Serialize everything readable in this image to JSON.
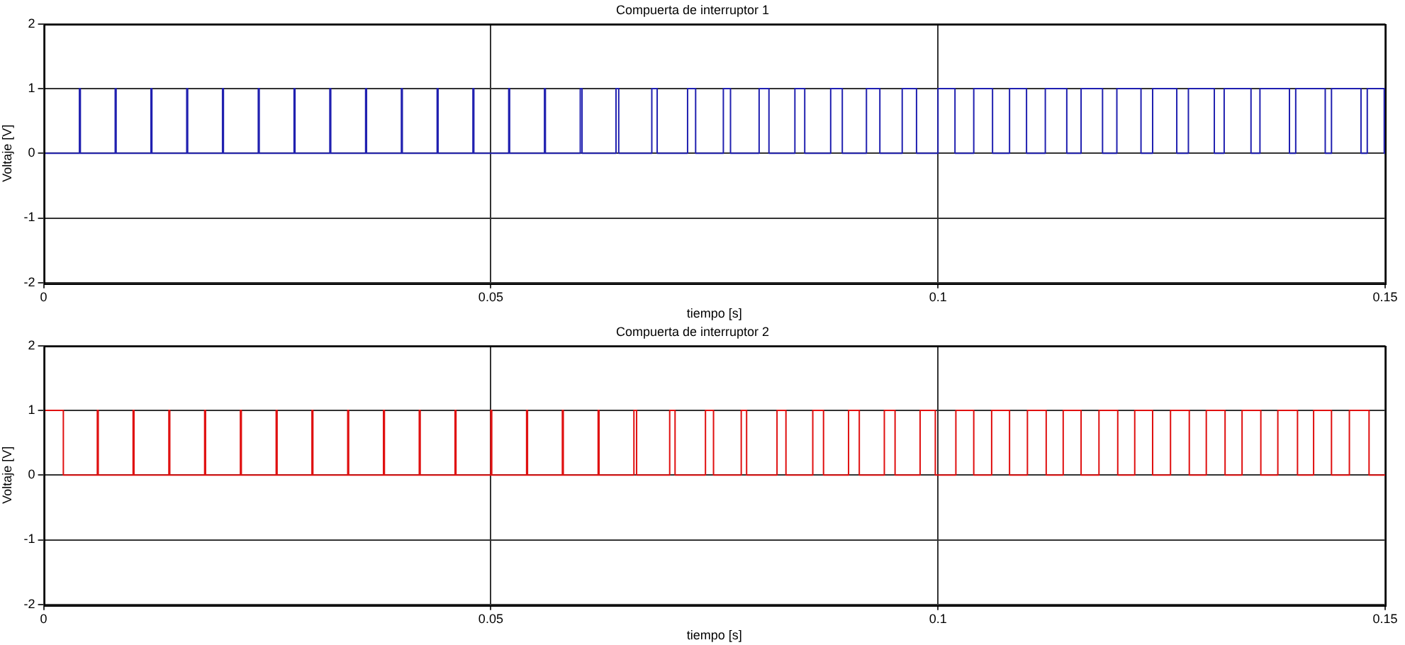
{
  "chart_data": [
    {
      "type": "step",
      "title": "Compuerta de interruptor 1",
      "xlabel": "tiempo [s]",
      "ylabel": "Voltaje [V]",
      "xlim": [
        0,
        0.15
      ],
      "xticks": [
        0,
        0.05,
        0.1,
        0.15
      ],
      "ylim": [
        -2,
        2
      ],
      "yticks": [
        -2,
        -1,
        0,
        1,
        2
      ],
      "grid": true,
      "x": [
        0,
        0.004,
        0.0041,
        0.008,
        0.0081,
        0.012,
        0.0121,
        0.016,
        0.0161,
        0.02,
        0.0201,
        0.024,
        0.0241,
        0.028,
        0.0281,
        0.032,
        0.0321,
        0.036,
        0.0361,
        0.04,
        0.0401,
        0.044,
        0.0441,
        0.048,
        0.0481,
        0.052,
        0.0521,
        0.056,
        0.0561,
        0.06,
        0.0602,
        0.064,
        0.0643,
        0.068,
        0.0686,
        0.072,
        0.0729,
        0.076,
        0.0768,
        0.08,
        0.0811,
        0.084,
        0.0851,
        0.088,
        0.0893,
        0.092,
        0.0935,
        0.096,
        0.0976,
        0.1,
        0.1019,
        0.104,
        0.1061,
        0.108,
        0.1099,
        0.112,
        0.1144,
        0.116,
        0.1184,
        0.12,
        0.1227,
        0.124,
        0.1267,
        0.128,
        0.1309,
        0.132,
        0.135,
        0.136,
        0.1393,
        0.14,
        0.1433,
        0.144,
        0.1473,
        0.148,
        0.1499,
        0.15
      ],
      "series": [
        {
          "color": "#2020b0",
          "values": [
            0,
            1,
            0,
            1,
            0,
            1,
            0,
            1,
            0,
            1,
            0,
            1,
            0,
            1,
            0,
            1,
            0,
            1,
            0,
            1,
            0,
            1,
            0,
            1,
            0,
            1,
            0,
            1,
            0,
            1,
            0,
            1,
            0,
            1,
            0,
            1,
            0,
            1,
            0,
            1,
            0,
            1,
            0,
            1,
            0,
            1,
            0,
            1,
            0,
            1,
            0,
            1,
            0,
            1,
            0,
            1,
            0,
            1,
            0,
            1,
            0,
            1,
            0,
            1,
            0,
            1,
            0,
            1,
            0,
            1,
            0,
            1,
            0,
            1,
            0,
            0
          ]
        }
      ]
    },
    {
      "type": "step",
      "title": "Compuerta de interruptor 2",
      "xlabel": "tiempo [s]",
      "ylabel": "Voltaje [V]",
      "xlim": [
        0,
        0.15
      ],
      "xticks": [
        0,
        0.05,
        0.1,
        0.15
      ],
      "ylim": [
        -2,
        2
      ],
      "yticks": [
        -2,
        -1,
        0,
        1,
        2
      ],
      "grid": true,
      "x": [
        0,
        0.0022,
        0.006,
        0.0061,
        0.01,
        0.0101,
        0.014,
        0.0141,
        0.018,
        0.0181,
        0.022,
        0.0221,
        0.026,
        0.0261,
        0.03,
        0.0301,
        0.034,
        0.0341,
        0.038,
        0.0381,
        0.042,
        0.0421,
        0.046,
        0.0461,
        0.05,
        0.0501,
        0.054,
        0.0541,
        0.058,
        0.0581,
        0.062,
        0.0621,
        0.066,
        0.0663,
        0.07,
        0.0706,
        0.074,
        0.0749,
        0.078,
        0.0786,
        0.082,
        0.083,
        0.086,
        0.0872,
        0.09,
        0.0912,
        0.094,
        0.0952,
        0.098,
        0.0997,
        0.102,
        0.104,
        0.106,
        0.108,
        0.11,
        0.1121,
        0.114,
        0.116,
        0.118,
        0.1201,
        0.122,
        0.124,
        0.126,
        0.1281,
        0.13,
        0.1321,
        0.134,
        0.1361,
        0.138,
        0.1402,
        0.142,
        0.144,
        0.146,
        0.1482,
        0.15
      ],
      "series": [
        {
          "color": "#e01010",
          "values": [
            1,
            0,
            1,
            0,
            1,
            0,
            1,
            0,
            1,
            0,
            1,
            0,
            1,
            0,
            1,
            0,
            1,
            0,
            1,
            0,
            1,
            0,
            1,
            0,
            1,
            0,
            1,
            0,
            1,
            0,
            1,
            0,
            1,
            0,
            1,
            0,
            1,
            0,
            1,
            0,
            1,
            0,
            1,
            0,
            1,
            0,
            1,
            0,
            1,
            0,
            1,
            0,
            1,
            0,
            1,
            0,
            1,
            0,
            1,
            0,
            1,
            0,
            1,
            0,
            1,
            0,
            1,
            0,
            1,
            0,
            1,
            0,
            1,
            0,
            0
          ]
        }
      ]
    }
  ]
}
